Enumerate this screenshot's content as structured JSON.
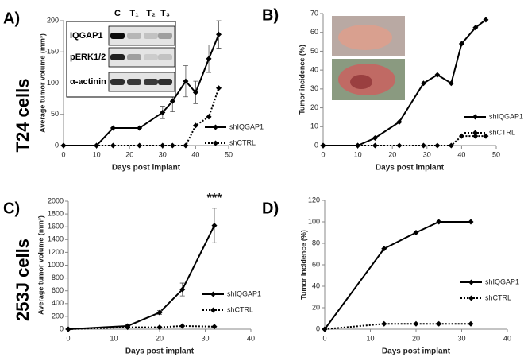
{
  "row_labels": [
    "T24 cells",
    "253J cells"
  ],
  "chart_data": [
    {
      "type": "line",
      "panel_label": "A)",
      "xlabel": "Days post implant",
      "ylabel": "Average tumor volume (mm³)",
      "xlim": [
        0,
        50
      ],
      "xticks": [
        0,
        10,
        20,
        30,
        40,
        50
      ],
      "ylim": [
        0,
        200
      ],
      "yticks": [
        0,
        50,
        100,
        150,
        200
      ],
      "inset": {
        "lanes": [
          "C",
          "T₁",
          "T₂",
          "T₃"
        ],
        "rows": [
          "IQGAP1",
          "pERK1/2",
          "α-actinin"
        ]
      },
      "series": [
        {
          "name": "shIQGAP1",
          "color": "#000000",
          "linestyle": "solid",
          "x": [
            0,
            10,
            15,
            23,
            30,
            33,
            37,
            40,
            44,
            47
          ],
          "values": [
            0,
            0,
            28,
            28,
            53,
            71,
            103,
            85,
            139,
            178
          ],
          "errors": [
            null,
            null,
            null,
            null,
            10,
            17,
            25,
            18,
            22,
            22
          ]
        },
        {
          "name": "shCTRL",
          "color": "#000000",
          "linestyle": "dotted",
          "x": [
            0,
            10,
            15,
            23,
            30,
            33,
            37,
            40,
            44,
            47
          ],
          "values": [
            0,
            0,
            0,
            0,
            0,
            0,
            0,
            32,
            46,
            92
          ]
        }
      ]
    },
    {
      "type": "line",
      "panel_label": "B)",
      "xlabel": "Days post implant",
      "ylabel": "Tumor incidence (%)",
      "xlim": [
        0,
        50
      ],
      "xticks": [
        0,
        10,
        20,
        30,
        40,
        50
      ],
      "ylim": [
        0,
        70
      ],
      "yticks": [
        0,
        10,
        20,
        30,
        40,
        50,
        60,
        70
      ],
      "series": [
        {
          "name": "shIQGAP1",
          "color": "#000000",
          "linestyle": "solid",
          "x": [
            0,
            10,
            15,
            22,
            29,
            33,
            37,
            40,
            44,
            47
          ],
          "values": [
            0,
            0,
            4,
            12.5,
            33,
            37.5,
            33,
            54,
            62.5,
            66.7
          ]
        },
        {
          "name": "shCTRL",
          "color": "#000000",
          "linestyle": "dotted",
          "x": [
            0,
            10,
            15,
            22,
            29,
            33,
            37,
            40,
            44,
            47
          ],
          "values": [
            0,
            0,
            0,
            0,
            0,
            0,
            0,
            5,
            5,
            5
          ]
        }
      ]
    },
    {
      "type": "line",
      "panel_label": "C)",
      "xlabel": "Days post implant",
      "ylabel": "Average tumor volume (mm³)",
      "xlim": [
        0,
        40
      ],
      "xticks": [
        0,
        10,
        20,
        30,
        40
      ],
      "ylim": [
        0,
        2000
      ],
      "yticks": [
        0,
        200,
        400,
        600,
        800,
        1000,
        1200,
        1400,
        1600,
        1800,
        2000
      ],
      "annotation": "***",
      "series": [
        {
          "name": "shIQGAP1",
          "color": "#000000",
          "linestyle": "solid",
          "x": [
            0,
            13,
            20,
            25,
            32
          ],
          "values": [
            0,
            50,
            260,
            620,
            1620
          ],
          "errors": [
            null,
            20,
            30,
            100,
            270
          ]
        },
        {
          "name": "shCTRL",
          "color": "#000000",
          "linestyle": "dotted",
          "x": [
            0,
            13,
            20,
            25,
            32
          ],
          "values": [
            0,
            30,
            30,
            50,
            40
          ]
        }
      ]
    },
    {
      "type": "line",
      "panel_label": "D)",
      "xlabel": "Days post implant",
      "ylabel": "Tumor incidence (%)",
      "xlim": [
        0,
        40
      ],
      "xticks": [
        0,
        10,
        20,
        30,
        40
      ],
      "ylim": [
        0,
        120
      ],
      "yticks": [
        0,
        20,
        40,
        60,
        80,
        100,
        120
      ],
      "series": [
        {
          "name": "shIQGAP1",
          "color": "#000000",
          "linestyle": "solid",
          "x": [
            0,
            13,
            20,
            25,
            32
          ],
          "values": [
            0,
            75,
            90,
            100,
            100
          ]
        },
        {
          "name": "shCTRL",
          "color": "#000000",
          "linestyle": "dotted",
          "x": [
            0,
            13,
            20,
            25,
            32
          ],
          "values": [
            0,
            5,
            5,
            5,
            5
          ]
        }
      ]
    }
  ]
}
